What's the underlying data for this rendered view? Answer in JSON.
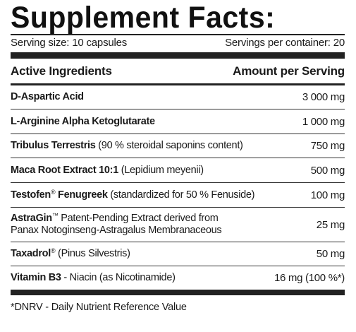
{
  "title": "Supplement Facts:",
  "serving": {
    "size": "Serving size: 10 capsules",
    "per_container": "Servings per container: 20"
  },
  "header": {
    "active": "Active Ingredients",
    "amount": "Amount per Serving"
  },
  "ingredients": [
    {
      "name": "D-Aspartic Acid",
      "detail": "",
      "amount": "3 000 mg"
    },
    {
      "name": "L-Arginine Alpha Ketoglutarate",
      "detail": "",
      "amount": "1 000 mg"
    },
    {
      "name": "Tribulus Terrestris",
      "detail": " (90 % steroidal saponins content)",
      "amount": "750 mg"
    },
    {
      "name": "Maca Root Extract 10:1",
      "detail": " (Lepidium meyenii)",
      "amount": "500 mg"
    },
    {
      "name": "Testofen",
      "mark": "®",
      "name2": " Fenugreek",
      "detail": " (standardized for 50 % Fenuside)",
      "amount": "100 mg"
    },
    {
      "name": "AstraGin",
      "mark": "™",
      "detail": " Patent-Pending Extract derived from",
      "detail2": "Panax Notoginseng-Astragalus Membranaceous",
      "amount": "25 mg"
    },
    {
      "name": "Taxadrol",
      "mark": "®",
      "detail": " (Pinus Silvestris)",
      "amount": "50 mg"
    },
    {
      "name": "Vitamin B3",
      "detail": " - Niacin (as Nicotinamide)",
      "amount": "16 mg (100 %*)"
    }
  ],
  "footnote": "*DNRV - Daily Nutrient Reference Value"
}
